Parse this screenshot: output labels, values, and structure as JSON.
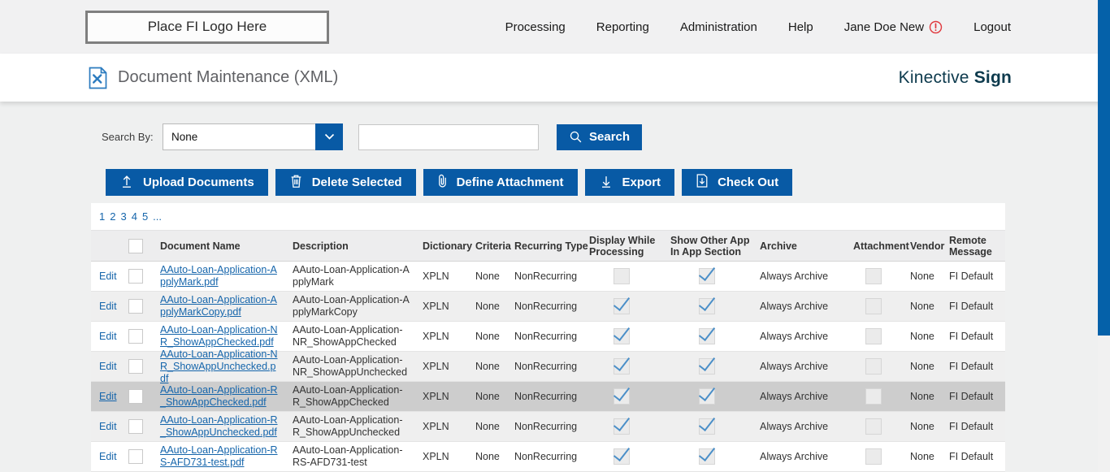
{
  "header": {
    "logo_placeholder": "Place FI Logo Here",
    "nav_items": [
      {
        "label": "Processing",
        "name": "nav-processing",
        "alert": false
      },
      {
        "label": "Reporting",
        "name": "nav-reporting",
        "alert": false
      },
      {
        "label": "Administration",
        "name": "nav-administration",
        "alert": false
      },
      {
        "label": "Help",
        "name": "nav-help",
        "alert": false
      },
      {
        "label": "Jane Doe New",
        "name": "nav-user",
        "alert": true
      },
      {
        "label": "Logout",
        "name": "nav-logout",
        "alert": false
      }
    ]
  },
  "title_bar": {
    "page_title": "Document Maintenance (XML)",
    "brand_regular": "Kinective",
    "brand_bold": "Sign"
  },
  "search": {
    "label": "Search By:",
    "selected_option": "None",
    "input_value": "",
    "button_label": "Search"
  },
  "toolbar": {
    "buttons": [
      {
        "label": "Upload Documents",
        "icon": "upload-icon",
        "name": "upload-documents-button"
      },
      {
        "label": "Delete Selected",
        "icon": "trash-icon",
        "name": "delete-selected-button"
      },
      {
        "label": "Define Attachment",
        "icon": "paperclip-icon",
        "name": "define-attachment-button"
      },
      {
        "label": "Export",
        "icon": "export-icon",
        "name": "export-button"
      },
      {
        "label": "Check Out",
        "icon": "checkout-icon",
        "name": "check-out-button"
      }
    ]
  },
  "pagination": {
    "pages": [
      "1",
      "2",
      "3",
      "4",
      "5",
      "..."
    ]
  },
  "table": {
    "edit_label": "Edit",
    "headers": {
      "document_name": "Document Name",
      "description": "Description",
      "dictionary": "Dictionary",
      "criteria": "Criteria",
      "recurring_type": "Recurring Type",
      "display_while_processing": "Display While Processing",
      "show_other_app": "Show Other App In App Section",
      "archive": "Archive",
      "attachment": "Attachment",
      "vendor": "Vendor",
      "remote_message": "Remote Message"
    },
    "rows": [
      {
        "name": "AAuto-Loan-Application-ApplyMark.pdf",
        "description": "AAuto-Loan-Application-ApplyMark",
        "dictionary": "XPLN",
        "criteria": "None",
        "recurring_type": "NonRecurring",
        "display_while_processing": false,
        "show_other_app": true,
        "archive": "Always Archive",
        "attachment": false,
        "vendor": "None",
        "remote_message": "FI Default",
        "highlighted": false
      },
      {
        "name": "AAuto-Loan-Application-ApplyMarkCopy.pdf",
        "description": "AAuto-Loan-Application-ApplyMarkCopy",
        "dictionary": "XPLN",
        "criteria": "None",
        "recurring_type": "NonRecurring",
        "display_while_processing": true,
        "show_other_app": true,
        "archive": "Always Archive",
        "attachment": false,
        "vendor": "None",
        "remote_message": "FI Default",
        "highlighted": false
      },
      {
        "name": "AAuto-Loan-Application-NR_ShowAppChecked.pdf",
        "description": "AAuto-Loan-Application-NR_ShowAppChecked",
        "dictionary": "XPLN",
        "criteria": "None",
        "recurring_type": "NonRecurring",
        "display_while_processing": true,
        "show_other_app": true,
        "archive": "Always Archive",
        "attachment": false,
        "vendor": "None",
        "remote_message": "FI Default",
        "highlighted": false
      },
      {
        "name": "AAuto-Loan-Application-NR_ShowAppUnchecked.pdf",
        "description": "AAuto-Loan-Application-NR_ShowAppUnchecked",
        "dictionary": "XPLN",
        "criteria": "None",
        "recurring_type": "NonRecurring",
        "display_while_processing": true,
        "show_other_app": true,
        "archive": "Always Archive",
        "attachment": false,
        "vendor": "None",
        "remote_message": "FI Default",
        "highlighted": false
      },
      {
        "name": "AAuto-Loan-Application-R_ShowAppChecked.pdf",
        "description": "AAuto-Loan-Application-R_ShowAppChecked",
        "dictionary": "XPLN",
        "criteria": "None",
        "recurring_type": "NonRecurring",
        "display_while_processing": true,
        "show_other_app": true,
        "archive": "Always Archive",
        "attachment": false,
        "vendor": "None",
        "remote_message": "FI Default",
        "highlighted": true
      },
      {
        "name": "AAuto-Loan-Application-R_ShowAppUnchecked.pdf",
        "description": "AAuto-Loan-Application-R_ShowAppUnchecked",
        "dictionary": "XPLN",
        "criteria": "None",
        "recurring_type": "NonRecurring",
        "display_while_processing": true,
        "show_other_app": true,
        "archive": "Always Archive",
        "attachment": false,
        "vendor": "None",
        "remote_message": "FI Default",
        "highlighted": false
      },
      {
        "name": "AAuto-Loan-Application-RS-AFD731-test.pdf",
        "description": "AAuto-Loan-Application-RS-AFD731-test",
        "dictionary": "XPLN",
        "criteria": "None",
        "recurring_type": "NonRecurring",
        "display_while_processing": true,
        "show_other_app": true,
        "archive": "Always Archive",
        "attachment": false,
        "vendor": "None",
        "remote_message": "FI Default",
        "highlighted": false
      }
    ]
  },
  "colors": {
    "accent_blue": "#085aa5",
    "link_blue": "#1565ab",
    "brand_navy": "#0d3a4d",
    "alert_red": "#e0393e",
    "scrollbar_blue": "#0561a9"
  }
}
